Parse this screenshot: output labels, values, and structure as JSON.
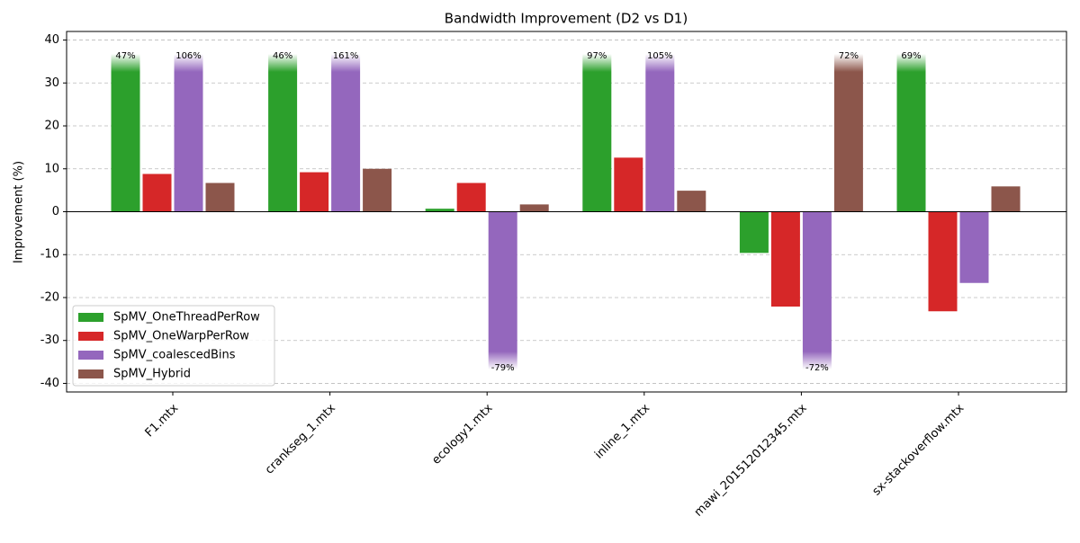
{
  "chart_data": {
    "type": "bar",
    "title": "Bandwidth Improvement (D2 vs D1)",
    "ylabel": "Improvement (%)",
    "categories": [
      "F1.mtx",
      "crankseg_1.mtx",
      "ecology1.mtx",
      "inline_1.mtx",
      "mawi_201512012345.mtx",
      "sx-stackoverflow.mtx"
    ],
    "series": [
      {
        "name": "SpMV_OneThreadPerRow",
        "color": "#2ca02c",
        "values": [
          47,
          46,
          0.7,
          97,
          -9.6,
          69
        ],
        "value_labels": [
          "47%",
          "46%",
          null,
          "97%",
          null,
          "69%"
        ]
      },
      {
        "name": "SpMV_OneWarpPerRow",
        "color": "#d62728",
        "values": [
          8.8,
          9.2,
          6.7,
          12.6,
          -22.1,
          -23.2
        ]
      },
      {
        "name": "SpMV_coalescedBins",
        "color": "#9467bd",
        "values": [
          106,
          161,
          -79,
          105,
          -72,
          -16.6
        ],
        "value_labels": [
          "106%",
          "161%",
          "-79%",
          "105%",
          "-72%",
          null
        ]
      },
      {
        "name": "SpMV_Hybrid",
        "color": "#8c564b",
        "values": [
          6.7,
          10,
          1.7,
          4.9,
          72,
          5.9
        ],
        "value_labels": [
          null,
          null,
          null,
          null,
          "72%",
          null
        ]
      }
    ],
    "ylim": [
      -42,
      42
    ],
    "yticks": [
      -40,
      -30,
      -20,
      -10,
      0,
      10,
      20,
      30,
      40
    ],
    "grid": true,
    "legend": "lower left"
  }
}
